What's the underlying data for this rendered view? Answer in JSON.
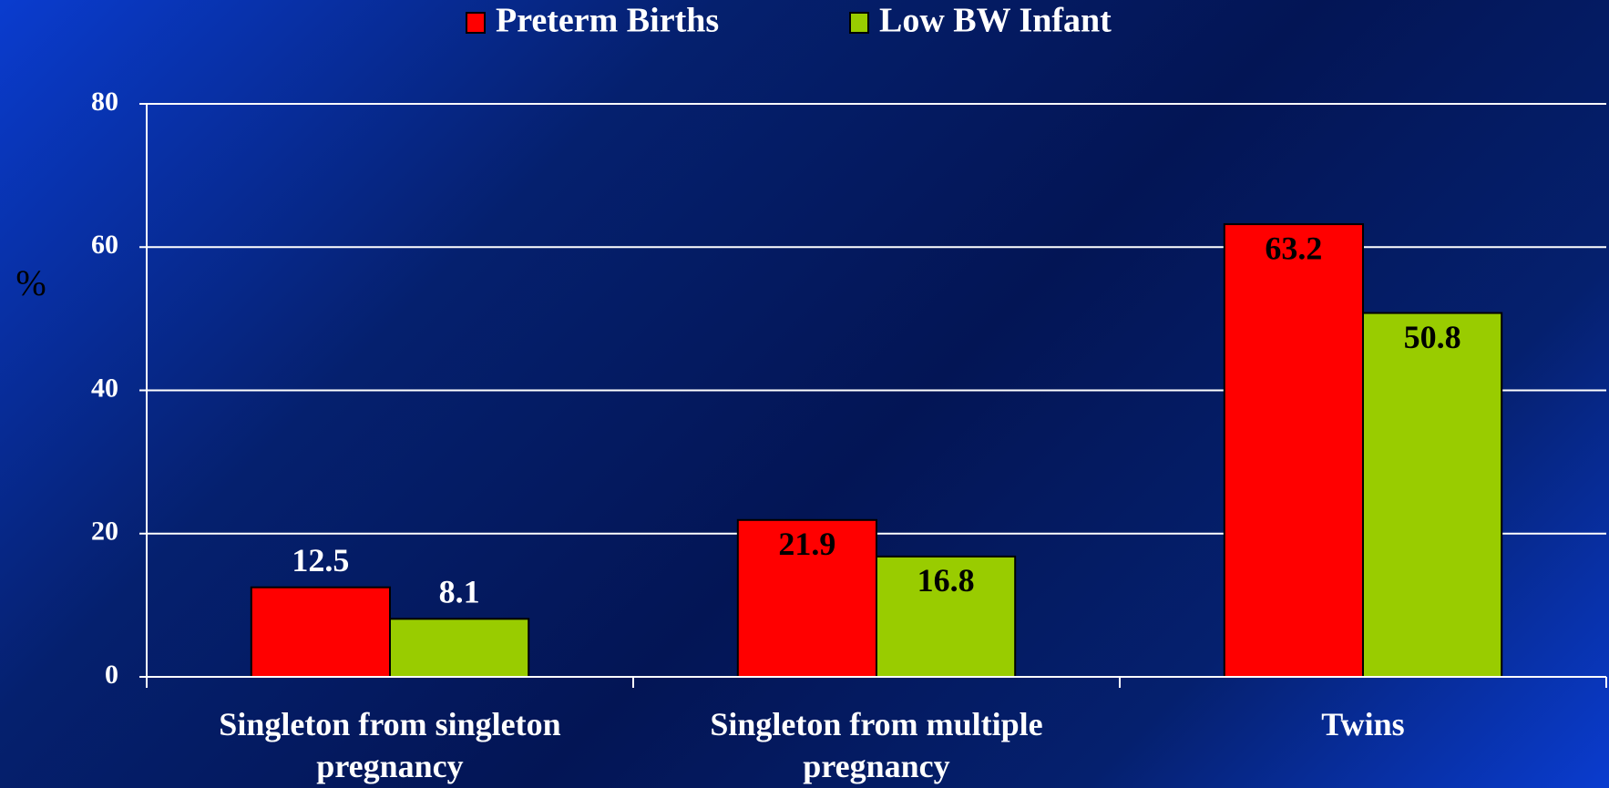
{
  "chart_data": {
    "type": "bar",
    "y_label": "%",
    "categories": [
      "Singleton from singleton pregnancy",
      "Singleton from multiple pregnancy",
      "Twins"
    ],
    "series": [
      {
        "name": "Preterm Births",
        "color": "#ff0000",
        "values": [
          12.5,
          21.9,
          63.2
        ]
      },
      {
        "name": "Low BW Infant",
        "color": "#99cc00",
        "values": [
          8.1,
          16.8,
          50.8
        ]
      }
    ],
    "ylim": [
      0,
      80
    ],
    "yticks": [
      0,
      20,
      40,
      60,
      80
    ],
    "grid": true,
    "legend": "top"
  }
}
